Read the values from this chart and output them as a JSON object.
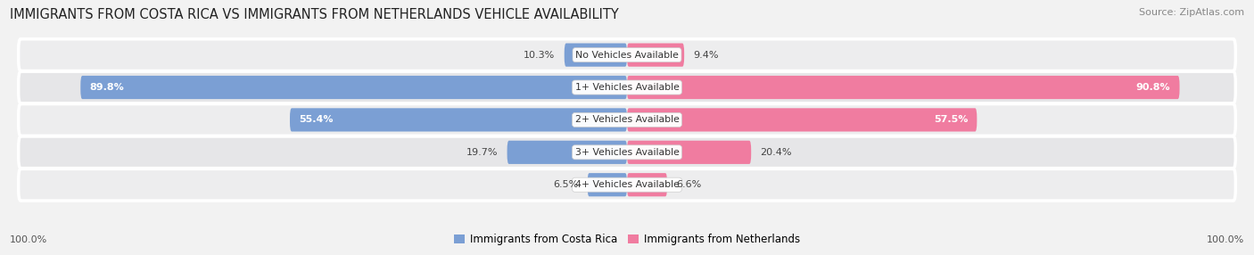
{
  "title": "IMMIGRANTS FROM COSTA RICA VS IMMIGRANTS FROM NETHERLANDS VEHICLE AVAILABILITY",
  "source": "Source: ZipAtlas.com",
  "categories": [
    "No Vehicles Available",
    "1+ Vehicles Available",
    "2+ Vehicles Available",
    "3+ Vehicles Available",
    "4+ Vehicles Available"
  ],
  "costa_rica_values": [
    10.3,
    89.8,
    55.4,
    19.7,
    6.5
  ],
  "netherlands_values": [
    9.4,
    90.8,
    57.5,
    20.4,
    6.6
  ],
  "max_value": 100.0,
  "color_costa_rica": "#7B9FD4",
  "color_netherlands": "#F07CA0",
  "row_colors": [
    "#ededee",
    "#e6e6e8",
    "#ededee",
    "#e6e6e8",
    "#ededee"
  ],
  "fig_bg": "#f2f2f2",
  "title_fontsize": 10.5,
  "source_fontsize": 8,
  "legend_label_cr": "Immigrants from Costa Rica",
  "legend_label_nl": "Immigrants from Netherlands"
}
